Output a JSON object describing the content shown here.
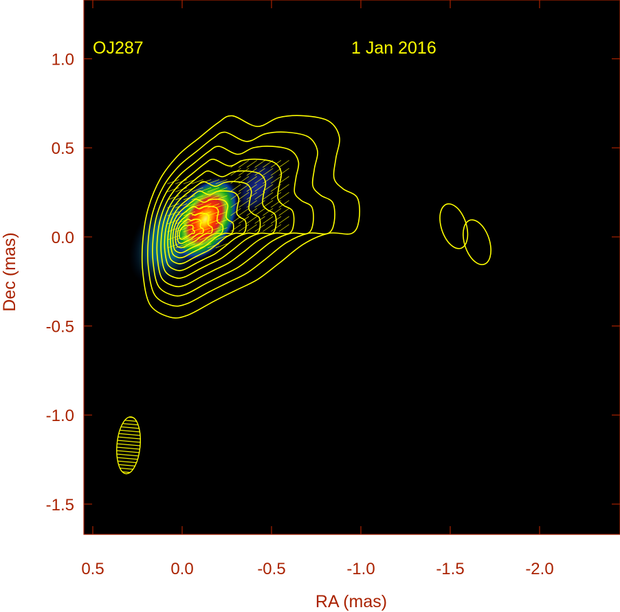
{
  "chart_data": {
    "type": "contour",
    "source_name": "OJ287",
    "date": "1 Jan 2016",
    "xlabel": "RA (mas)",
    "ylabel": "Dec (mas)",
    "xlim": [
      0.55,
      -2.45
    ],
    "ylim": [
      -1.67,
      1.33
    ],
    "x_ticks": [
      0.5,
      0.0,
      -0.5,
      -1.0,
      -1.5,
      -2.0
    ],
    "x_tick_labels": [
      "0.5",
      "0.0",
      "-0.5",
      "-1.0",
      "-1.5",
      "-2.0"
    ],
    "y_ticks": [
      1.0,
      0.5,
      0.0,
      -0.5,
      -1.0,
      -1.5
    ],
    "y_tick_labels": [
      "1.0",
      "0.5",
      "0.0",
      "-0.5",
      "-1.0",
      "-1.5"
    ],
    "grid": false,
    "core": {
      "x": 0.0,
      "y": 0.02
    },
    "peak_polarized_intensity": {
      "x": -0.13,
      "y": 0.1
    },
    "secondary_polarized_feature": {
      "x": -0.42,
      "y": 0.28
    },
    "isolated_components": [
      {
        "x": -1.52,
        "y": 0.06
      },
      {
        "x": -1.65,
        "y": -0.03
      }
    ],
    "beam": {
      "x": 0.3,
      "y": -1.17,
      "major_mas": 0.32,
      "minor_mas": 0.13,
      "pa_deg": 5
    },
    "colors": {
      "background": "#000000",
      "frame": "#aa2200",
      "label": "#aa2200",
      "contour": "#ffff00",
      "annotation": "#ffff00"
    }
  }
}
